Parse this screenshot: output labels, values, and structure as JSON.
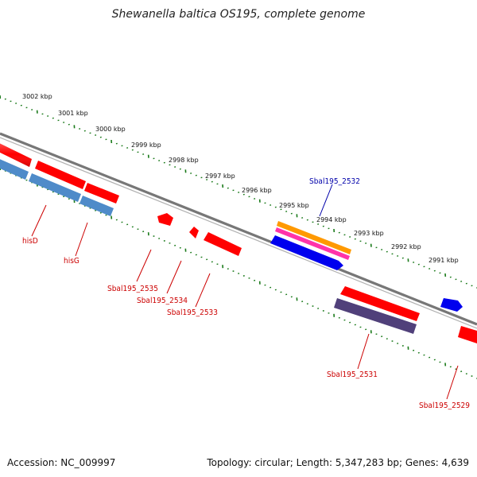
{
  "title": "Shewanella baltica OS195, complete genome",
  "accession": "Accession: NC_009997",
  "summary": "Topology: circular; Length: 5,347,283 bp; Genes: 4,639",
  "colors": {
    "backbone": "#808080",
    "tick": "#1a7a1a",
    "label_red": "#cc0000",
    "label_blue": "#0000aa"
  },
  "ruler": {
    "labels": [
      "3002 kbp",
      "3001 kbp",
      "3000 kbp",
      "2999 kbp",
      "2998 kbp",
      "2997 kbp",
      "2996 kbp",
      "2995 kbp",
      "2994 kbp",
      "2993 kbp",
      "2992 kbp",
      "2991 kbp"
    ]
  },
  "genes": [
    {
      "label": "hisD",
      "color": "#ff0000"
    },
    {
      "label": "hisG",
      "color": "#4f8bc9"
    },
    {
      "label": "Sbal195_2535",
      "color": "#ff0000"
    },
    {
      "label": "Sbal195_2534",
      "color": "#ff0000"
    },
    {
      "label": "Sbal195_2533",
      "color": "#ff0000"
    },
    {
      "label": "Sbal195_2532",
      "color": "#0000aa"
    },
    {
      "label": "Sbal195_2531",
      "color": "#ff0000"
    },
    {
      "label": "Sbal195_2529",
      "color": "#ff0000"
    }
  ]
}
